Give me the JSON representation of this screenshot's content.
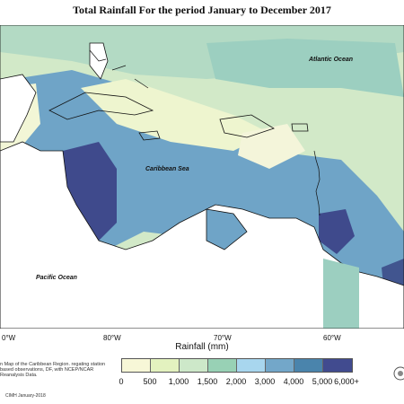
{
  "title": "Total Rainfall For the period January to December 2017",
  "labels": {
    "atlantic": "Atlantic Ocean",
    "caribbean": "Caribbean Sea",
    "pacific": "Pacific Ocean"
  },
  "longitudes": [
    "0°W",
    "80°W",
    "70°W",
    "60°W"
  ],
  "legend": {
    "title": "Rainfall (mm)",
    "colors": [
      "#f7f7d7",
      "#e3f2bf",
      "#cde8c9",
      "#98d1b5",
      "#a8d6ee",
      "#73a7c9",
      "#4a84ac",
      "#414b8f"
    ],
    "ticks": [
      "0",
      "500",
      "1,000",
      "1,500",
      "2,000",
      "3,000",
      "4,000",
      "5,000",
      "6,000+"
    ]
  },
  "note": "n Map of the Caribbean Region. regating station based observations, DF, with NCEP/NCAR Reanalysis Data.",
  "credit": "CIMH January-2018",
  "colors": {
    "land": "#ffffff",
    "border": "#111111"
  }
}
